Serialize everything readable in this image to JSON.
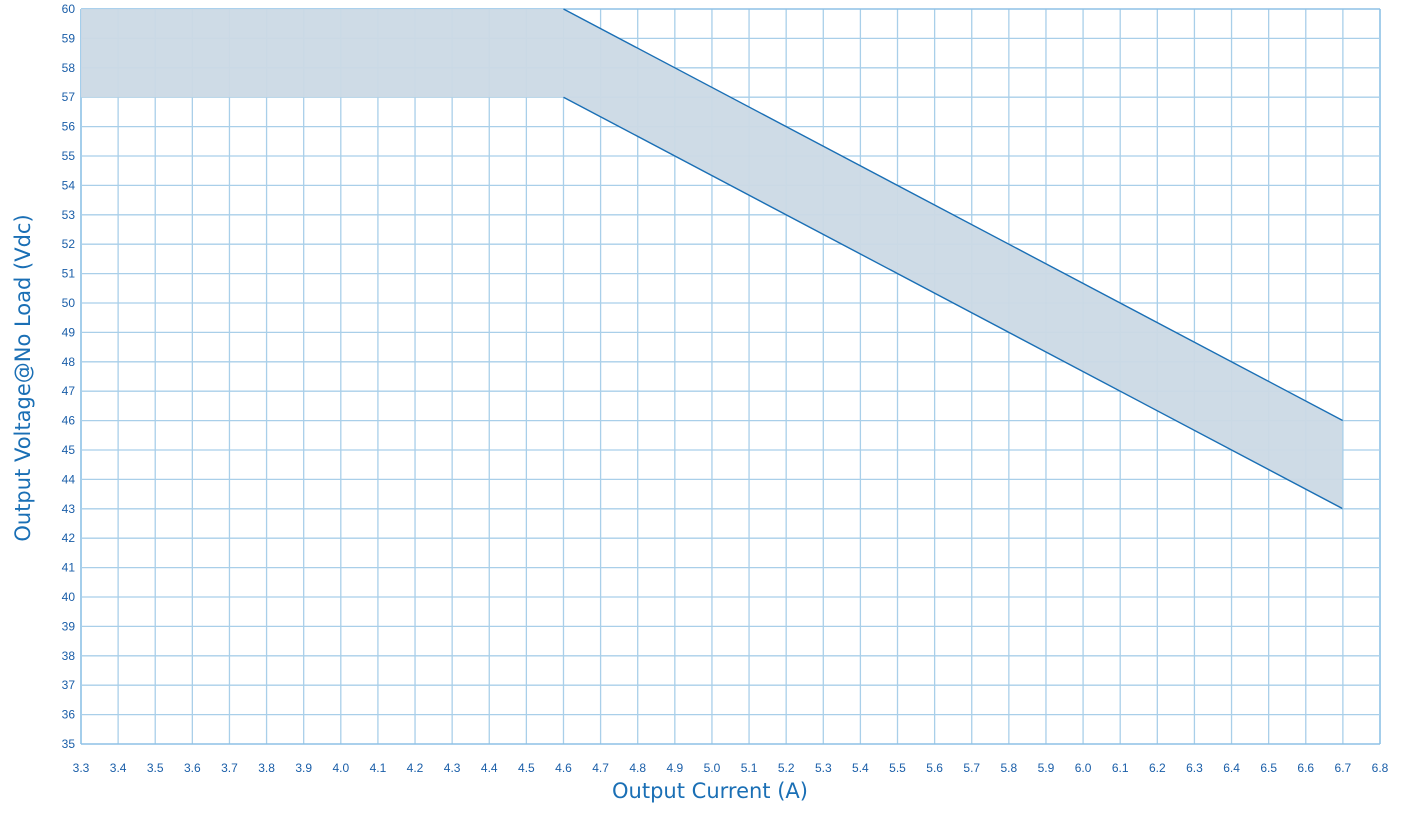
{
  "chart_data": {
    "type": "area",
    "title": "",
    "xlabel": "Output Current (A)",
    "ylabel": "Output Voltage@No Load  (Vdc)",
    "xlim": [
      3.3,
      6.8
    ],
    "ylim": [
      35,
      60
    ],
    "x_ticks": [
      "3.3",
      "3.4",
      "3.5",
      "3.6",
      "3.7",
      "3.8",
      "3.9",
      "4.0",
      "4.1",
      "4.2",
      "4.3",
      "4.4",
      "4.5",
      "4.6",
      "4.7",
      "4.8",
      "4.9",
      "5.0",
      "5.1",
      "5.2",
      "5.3",
      "5.4",
      "5.5",
      "5.6",
      "5.7",
      "5.8",
      "5.9",
      "6.0",
      "6.1",
      "6.2",
      "6.3",
      "6.4",
      "6.5",
      "6.6",
      "6.7",
      "6.8"
    ],
    "y_ticks": [
      "35",
      "36",
      "37",
      "38",
      "39",
      "40",
      "41",
      "42",
      "43",
      "44",
      "45",
      "46",
      "47",
      "48",
      "49",
      "50",
      "51",
      "52",
      "53",
      "54",
      "55",
      "56",
      "57",
      "58",
      "59",
      "60"
    ],
    "grid": true,
    "series": [
      {
        "role": "upper-bound",
        "x": [
          3.3,
          4.6,
          6.7
        ],
        "y": [
          60,
          60,
          46
        ]
      },
      {
        "role": "lower-bound",
        "x": [
          3.3,
          4.6,
          6.7
        ],
        "y": [
          57,
          57,
          43
        ]
      }
    ],
    "colors": {
      "band_fill": "#cbd9e5",
      "boundary_line": "#1a6fb5",
      "grid": "#a9cfe9",
      "axis": "#8ec1e6",
      "text": "#1a5ea8"
    }
  }
}
